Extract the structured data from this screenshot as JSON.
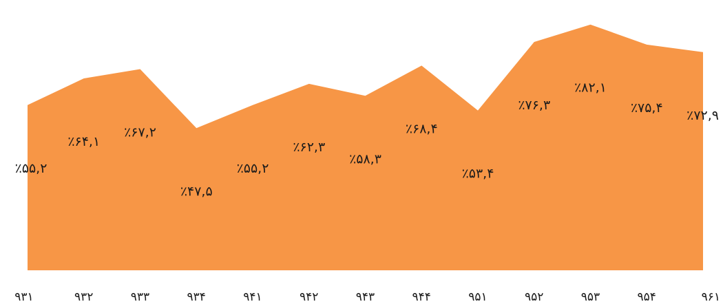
{
  "chart_data": {
    "type": "area",
    "categories": [
      "۹۳۱",
      "۹۳۲",
      "۹۳۳",
      "۹۳۴",
      "۹۴۱",
      "۹۴۲",
      "۹۴۳",
      "۹۴۴",
      "۹۵۱",
      "۹۵۲",
      "۹۵۳",
      "۹۵۴",
      "۹۶۱"
    ],
    "values": [
      55.2,
      64.1,
      67.2,
      47.5,
      55.2,
      62.3,
      58.3,
      68.4,
      53.4,
      76.3,
      82.1,
      75.4,
      72.9
    ],
    "data_labels": [
      "٪۵۵,۲",
      "٪۶۴,۱",
      "٪۶۷,۲",
      "٪۴۷,۵",
      "٪۵۵,۲",
      "٪۶۲,۳",
      "٪۵۸,۳",
      "٪۶۸,۴",
      "٪۵۳,۴",
      "٪۷۶,۳",
      "٪۸۲,۱",
      "٪۷۵,۴",
      "٪۷۲,۹"
    ],
    "title": "",
    "xlabel": "",
    "ylabel": "",
    "ylim": [
      0,
      86.4
    ],
    "grid": false,
    "legend": "none",
    "fill_color": "#F79646"
  }
}
